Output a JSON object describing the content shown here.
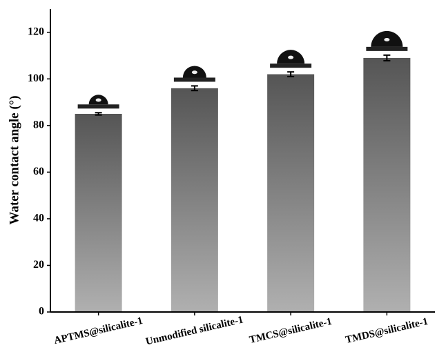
{
  "chart_data": {
    "type": "bar",
    "y_label": "Water contact angle (°)",
    "categories": [
      "APTMS@silicalite-1",
      "Unmodified silicalite-1",
      "TMCS@silicalite-1",
      "TMDS@silicalite-1"
    ],
    "values": [
      85,
      96,
      102,
      109
    ],
    "errors": [
      0.5,
      1,
      1,
      1.2
    ],
    "color_top": "#555555",
    "color_bottom": "#b0b0b0",
    "ylim": [
      0,
      130
    ],
    "yticks": [
      0,
      20,
      40,
      60,
      80,
      100,
      120
    ],
    "grid": false
  }
}
